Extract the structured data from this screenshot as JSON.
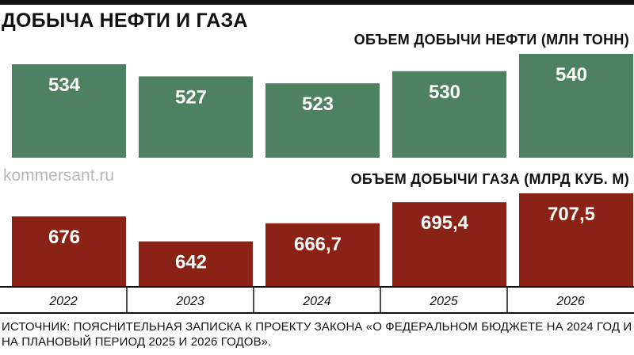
{
  "title": "ДОБЫЧА НЕФТИ И ГАЗА",
  "watermark": "kommersant.ru",
  "source": "ИСТОЧНИК: ПОЯСНИТЕЛЬНАЯ ЗАПИСКА К ПРОЕКТУ ЗАКОНА «О ФЕДЕРАЛЬНОМ БЮДЖЕТЕ НА 2024 ГОД И НА ПЛАНОВЫЙ ПЕРИОД 2025 И 2026 ГОДОВ».",
  "colors": {
    "oil": "#4e8161",
    "gas": "#8a2316",
    "label": "#ffffff"
  },
  "chart_data": [
    {
      "type": "bar",
      "title": "ОБЪЕМ ДОБЫЧИ НЕФТИ (МЛН ТОНН)",
      "categories": [
        "2022",
        "2023",
        "2024",
        "2025",
        "2026"
      ],
      "values": [
        534,
        527,
        523,
        530,
        540
      ],
      "value_labels": [
        "534",
        "527",
        "523",
        "530",
        "540"
      ]
    },
    {
      "type": "bar",
      "title": "ОБЪЕМ ДОБЫЧИ ГАЗА (МЛРД КУБ. М)",
      "categories": [
        "2022",
        "2023",
        "2024",
        "2025",
        "2026"
      ],
      "values": [
        676,
        642,
        666.7,
        695.4,
        707.5
      ],
      "value_labels": [
        "676",
        "642",
        "666,7",
        "695,4",
        "707,5"
      ]
    }
  ]
}
